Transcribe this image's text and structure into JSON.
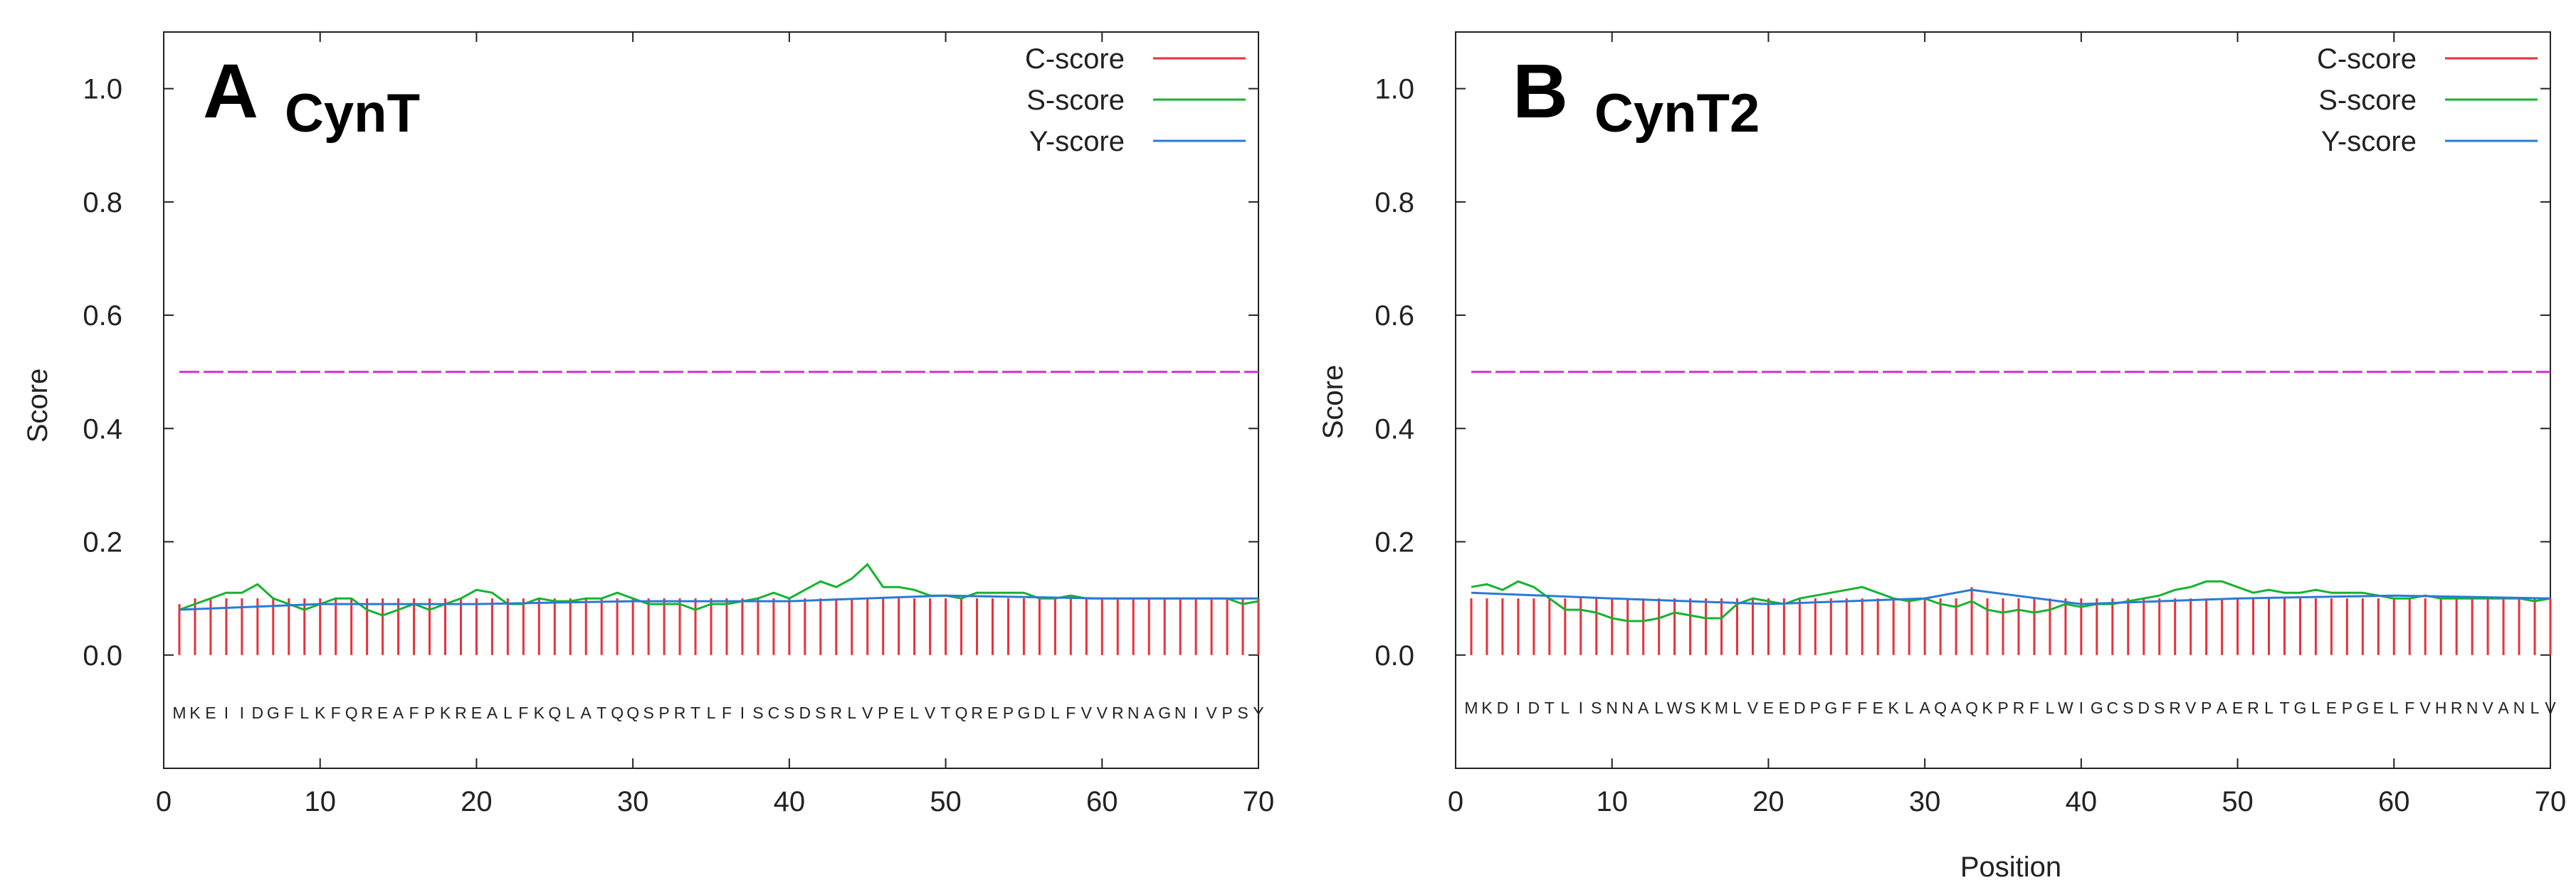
{
  "panels": [
    {
      "letter": "A",
      "title": "CynT",
      "ylabel": "Score",
      "xlabel": "",
      "sequence": "MKEIIDGFLKFQREAFPKREALFKQLATQQSPRTLFISCSDSRLVPELVTQREPGDLFVVRNAGNIVPSY"
    },
    {
      "letter": "B",
      "title": "CynT2",
      "ylabel": "Score",
      "xlabel": "Position",
      "sequence": "MKDIDTLISNNALWSKMLVEEDPGFFEKLAQAQKPRFLWIGCSDSRVPAERLTGLEPGELFVHRNVANLV"
    }
  ],
  "chart_data": [
    {
      "type": "line",
      "title": "CynT",
      "xlabel": "",
      "ylabel": "Score",
      "xlim": [
        0,
        70
      ],
      "ylim": [
        -0.2,
        1.1
      ],
      "xticks": [
        0,
        10,
        20,
        30,
        40,
        50,
        60,
        70
      ],
      "yticks": [
        0.0,
        0.2,
        0.4,
        0.6,
        0.8,
        1.0
      ],
      "legend": [
        {
          "name": "C-score",
          "color": "#e8313a"
        },
        {
          "name": "S-score",
          "color": "#16b330"
        },
        {
          "name": "Y-score",
          "color": "#2a7ad6"
        }
      ],
      "threshold": {
        "value": 0.5,
        "color": "#d62ed6"
      },
      "c_score": {
        "from": 1,
        "to": 70,
        "values": [
          0.09,
          0.1,
          0.1,
          0.1,
          0.1,
          0.1,
          0.1,
          0.1,
          0.1,
          0.1,
          0.1,
          0.1,
          0.1,
          0.1,
          0.1,
          0.1,
          0.1,
          0.1,
          0.1,
          0.1,
          0.1,
          0.1,
          0.1,
          0.1,
          0.1,
          0.1,
          0.1,
          0.1,
          0.1,
          0.1,
          0.1,
          0.1,
          0.1,
          0.1,
          0.1,
          0.1,
          0.1,
          0.1,
          0.1,
          0.1,
          0.1,
          0.1,
          0.1,
          0.1,
          0.1,
          0.1,
          0.1,
          0.1,
          0.1,
          0.1,
          0.1,
          0.1,
          0.1,
          0.1,
          0.1,
          0.1,
          0.1,
          0.1,
          0.1,
          0.1,
          0.1,
          0.1,
          0.1,
          0.1,
          0.1,
          0.1,
          0.1,
          0.1,
          0.1,
          0.1
        ]
      },
      "s_score": {
        "x": [
          1,
          2,
          3,
          4,
          5,
          6,
          7,
          8,
          9,
          10,
          11,
          12,
          13,
          14,
          15,
          16,
          17,
          18,
          19,
          20,
          21,
          22,
          23,
          24,
          25,
          26,
          27,
          28,
          29,
          30,
          31,
          32,
          33,
          34,
          35,
          36,
          37,
          38,
          39,
          40,
          41,
          42,
          43,
          44,
          45,
          46,
          47,
          48,
          49,
          50,
          51,
          52,
          53,
          54,
          55,
          56,
          57,
          58,
          59,
          60,
          61,
          62,
          63,
          64,
          65,
          66,
          67,
          68,
          69,
          70
        ],
        "values": [
          0.08,
          0.09,
          0.1,
          0.11,
          0.11,
          0.125,
          0.1,
          0.09,
          0.08,
          0.09,
          0.1,
          0.1,
          0.08,
          0.07,
          0.08,
          0.09,
          0.08,
          0.09,
          0.1,
          0.115,
          0.11,
          0.09,
          0.09,
          0.1,
          0.095,
          0.095,
          0.1,
          0.1,
          0.11,
          0.1,
          0.09,
          0.09,
          0.09,
          0.08,
          0.09,
          0.09,
          0.095,
          0.1,
          0.11,
          0.1,
          0.115,
          0.13,
          0.12,
          0.135,
          0.16,
          0.12,
          0.12,
          0.115,
          0.105,
          0.105,
          0.1,
          0.11,
          0.11,
          0.11,
          0.11,
          0.1,
          0.1,
          0.105,
          0.1,
          0.1,
          0.1,
          0.1,
          0.1,
          0.1,
          0.1,
          0.1,
          0.1,
          0.1,
          0.09,
          0.095
        ]
      },
      "y_score": {
        "x": [
          1,
          10,
          20,
          30,
          40,
          50,
          60,
          70
        ],
        "values": [
          0.08,
          0.09,
          0.09,
          0.095,
          0.095,
          0.105,
          0.1,
          0.1
        ]
      }
    },
    {
      "type": "line",
      "title": "CynT2",
      "xlabel": "Position",
      "ylabel": "Score",
      "xlim": [
        0,
        70
      ],
      "ylim": [
        -0.2,
        1.1
      ],
      "xticks": [
        0,
        10,
        20,
        30,
        40,
        50,
        60,
        70
      ],
      "yticks": [
        0.0,
        0.2,
        0.4,
        0.6,
        0.8,
        1.0
      ],
      "legend": [
        {
          "name": "C-score",
          "color": "#e8313a"
        },
        {
          "name": "S-score",
          "color": "#16b330"
        },
        {
          "name": "Y-score",
          "color": "#2a7ad6"
        }
      ],
      "threshold": {
        "value": 0.5,
        "color": "#d62ed6"
      },
      "c_score": {
        "from": 1,
        "to": 70,
        "values": [
          0.1,
          0.1,
          0.1,
          0.1,
          0.1,
          0.1,
          0.1,
          0.1,
          0.1,
          0.1,
          0.1,
          0.1,
          0.1,
          0.1,
          0.1,
          0.1,
          0.1,
          0.1,
          0.1,
          0.1,
          0.1,
          0.1,
          0.1,
          0.1,
          0.1,
          0.1,
          0.1,
          0.1,
          0.1,
          0.1,
          0.1,
          0.1,
          0.12,
          0.1,
          0.1,
          0.1,
          0.1,
          0.1,
          0.1,
          0.1,
          0.1,
          0.1,
          0.1,
          0.1,
          0.1,
          0.1,
          0.1,
          0.1,
          0.1,
          0.1,
          0.1,
          0.1,
          0.1,
          0.1,
          0.1,
          0.1,
          0.1,
          0.1,
          0.1,
          0.1,
          0.1,
          0.1,
          0.1,
          0.1,
          0.1,
          0.1,
          0.1,
          0.1,
          0.1,
          0.1
        ]
      },
      "s_score": {
        "x": [
          1,
          2,
          3,
          4,
          5,
          6,
          7,
          8,
          9,
          10,
          11,
          12,
          13,
          14,
          15,
          16,
          17,
          18,
          19,
          20,
          21,
          22,
          23,
          24,
          25,
          26,
          27,
          28,
          29,
          30,
          31,
          32,
          33,
          34,
          35,
          36,
          37,
          38,
          39,
          40,
          41,
          42,
          43,
          44,
          45,
          46,
          47,
          48,
          49,
          50,
          51,
          52,
          53,
          54,
          55,
          56,
          57,
          58,
          59,
          60,
          61,
          62,
          63,
          64,
          65,
          66,
          67,
          68,
          69,
          70
        ],
        "values": [
          0.12,
          0.125,
          0.115,
          0.13,
          0.12,
          0.1,
          0.08,
          0.08,
          0.075,
          0.065,
          0.06,
          0.06,
          0.065,
          0.075,
          0.07,
          0.065,
          0.065,
          0.09,
          0.1,
          0.095,
          0.09,
          0.1,
          0.105,
          0.11,
          0.115,
          0.12,
          0.11,
          0.1,
          0.095,
          0.1,
          0.09,
          0.085,
          0.095,
          0.08,
          0.075,
          0.08,
          0.075,
          0.08,
          0.09,
          0.085,
          0.09,
          0.09,
          0.095,
          0.1,
          0.105,
          0.115,
          0.12,
          0.13,
          0.13,
          0.12,
          0.11,
          0.115,
          0.11,
          0.11,
          0.115,
          0.11,
          0.11,
          0.11,
          0.105,
          0.1,
          0.1,
          0.105,
          0.1,
          0.1,
          0.1,
          0.1,
          0.1,
          0.1,
          0.095,
          0.1
        ]
      },
      "y_score": {
        "x": [
          1,
          10,
          20,
          30,
          33,
          40,
          50,
          60,
          70
        ],
        "values": [
          0.11,
          0.1,
          0.09,
          0.1,
          0.115,
          0.09,
          0.1,
          0.105,
          0.1
        ]
      }
    }
  ]
}
